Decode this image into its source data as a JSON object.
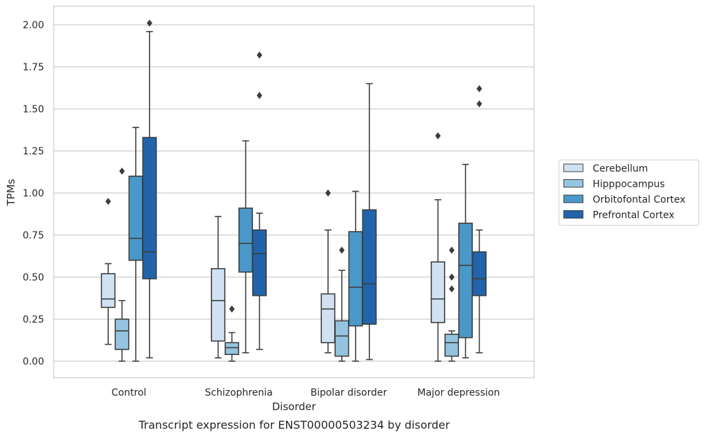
{
  "chart_data": {
    "type": "box",
    "title": "",
    "caption": "Transcript expression for ENST00000503234 by disorder",
    "xlabel": "Disorder",
    "ylabel": "TPMs",
    "ylim": [
      -0.1,
      2.12
    ],
    "yticks": [
      "0.00",
      "0.25",
      "0.50",
      "0.75",
      "1.00",
      "1.25",
      "1.50",
      "1.75",
      "2.00"
    ],
    "grid": "horizontal",
    "legend_position": "right",
    "categories": [
      "Control",
      "Schizophrenia",
      "Bipolar disorder",
      "Major depression"
    ],
    "series": [
      {
        "name": "Cerebellum",
        "color": "#d0e1f2",
        "boxes": [
          {
            "whisker_low": 0.1,
            "q1": 0.32,
            "median": 0.37,
            "q3": 0.52,
            "whisker_high": 0.58,
            "outliers": [
              0.95
            ]
          },
          {
            "whisker_low": 0.02,
            "q1": 0.12,
            "median": 0.36,
            "q3": 0.55,
            "whisker_high": 0.86,
            "outliers": []
          },
          {
            "whisker_low": 0.05,
            "q1": 0.11,
            "median": 0.31,
            "q3": 0.4,
            "whisker_high": 0.78,
            "outliers": [
              1.0
            ]
          },
          {
            "whisker_low": 0.0,
            "q1": 0.23,
            "median": 0.37,
            "q3": 0.59,
            "whisker_high": 0.96,
            "outliers": [
              1.34
            ]
          }
        ]
      },
      {
        "name": "Hipppocampus",
        "color": "#94c4df",
        "boxes": [
          {
            "whisker_low": 0.0,
            "q1": 0.07,
            "median": 0.18,
            "q3": 0.25,
            "whisker_high": 0.36,
            "outliers": [
              1.13
            ]
          },
          {
            "whisker_low": 0.0,
            "q1": 0.04,
            "median": 0.08,
            "q3": 0.11,
            "whisker_high": 0.17,
            "outliers": [
              0.31
            ]
          },
          {
            "whisker_low": 0.0,
            "q1": 0.03,
            "median": 0.15,
            "q3": 0.24,
            "whisker_high": 0.54,
            "outliers": [
              0.66
            ]
          },
          {
            "whisker_low": 0.0,
            "q1": 0.03,
            "median": 0.11,
            "q3": 0.16,
            "whisker_high": 0.18,
            "outliers": [
              0.43,
              0.5,
              0.66
            ]
          }
        ]
      },
      {
        "name": "Orbitofontal Cortex",
        "color": "#4a98c9",
        "boxes": [
          {
            "whisker_low": 0.0,
            "q1": 0.6,
            "median": 0.73,
            "q3": 1.1,
            "whisker_high": 1.39,
            "outliers": []
          },
          {
            "whisker_low": 0.05,
            "q1": 0.53,
            "median": 0.7,
            "q3": 0.91,
            "whisker_high": 1.31,
            "outliers": []
          },
          {
            "whisker_low": 0.0,
            "q1": 0.21,
            "median": 0.44,
            "q3": 0.77,
            "whisker_high": 1.01,
            "outliers": []
          },
          {
            "whisker_low": 0.02,
            "q1": 0.14,
            "median": 0.57,
            "q3": 0.82,
            "whisker_high": 1.17,
            "outliers": []
          }
        ]
      },
      {
        "name": "Prefrontal Cortex",
        "color": "#2164ab",
        "boxes": [
          {
            "whisker_low": 0.02,
            "q1": 0.49,
            "median": 0.65,
            "q3": 1.33,
            "whisker_high": 1.96,
            "outliers": [
              2.01
            ]
          },
          {
            "whisker_low": 0.07,
            "q1": 0.39,
            "median": 0.64,
            "q3": 0.78,
            "whisker_high": 0.88,
            "outliers": [
              1.58,
              1.82
            ]
          },
          {
            "whisker_low": 0.01,
            "q1": 0.22,
            "median": 0.46,
            "q3": 0.9,
            "whisker_high": 1.65,
            "outliers": []
          },
          {
            "whisker_low": 0.05,
            "q1": 0.39,
            "median": 0.49,
            "q3": 0.65,
            "whisker_high": 0.78,
            "outliers": [
              1.53,
              1.62
            ]
          }
        ]
      }
    ]
  }
}
